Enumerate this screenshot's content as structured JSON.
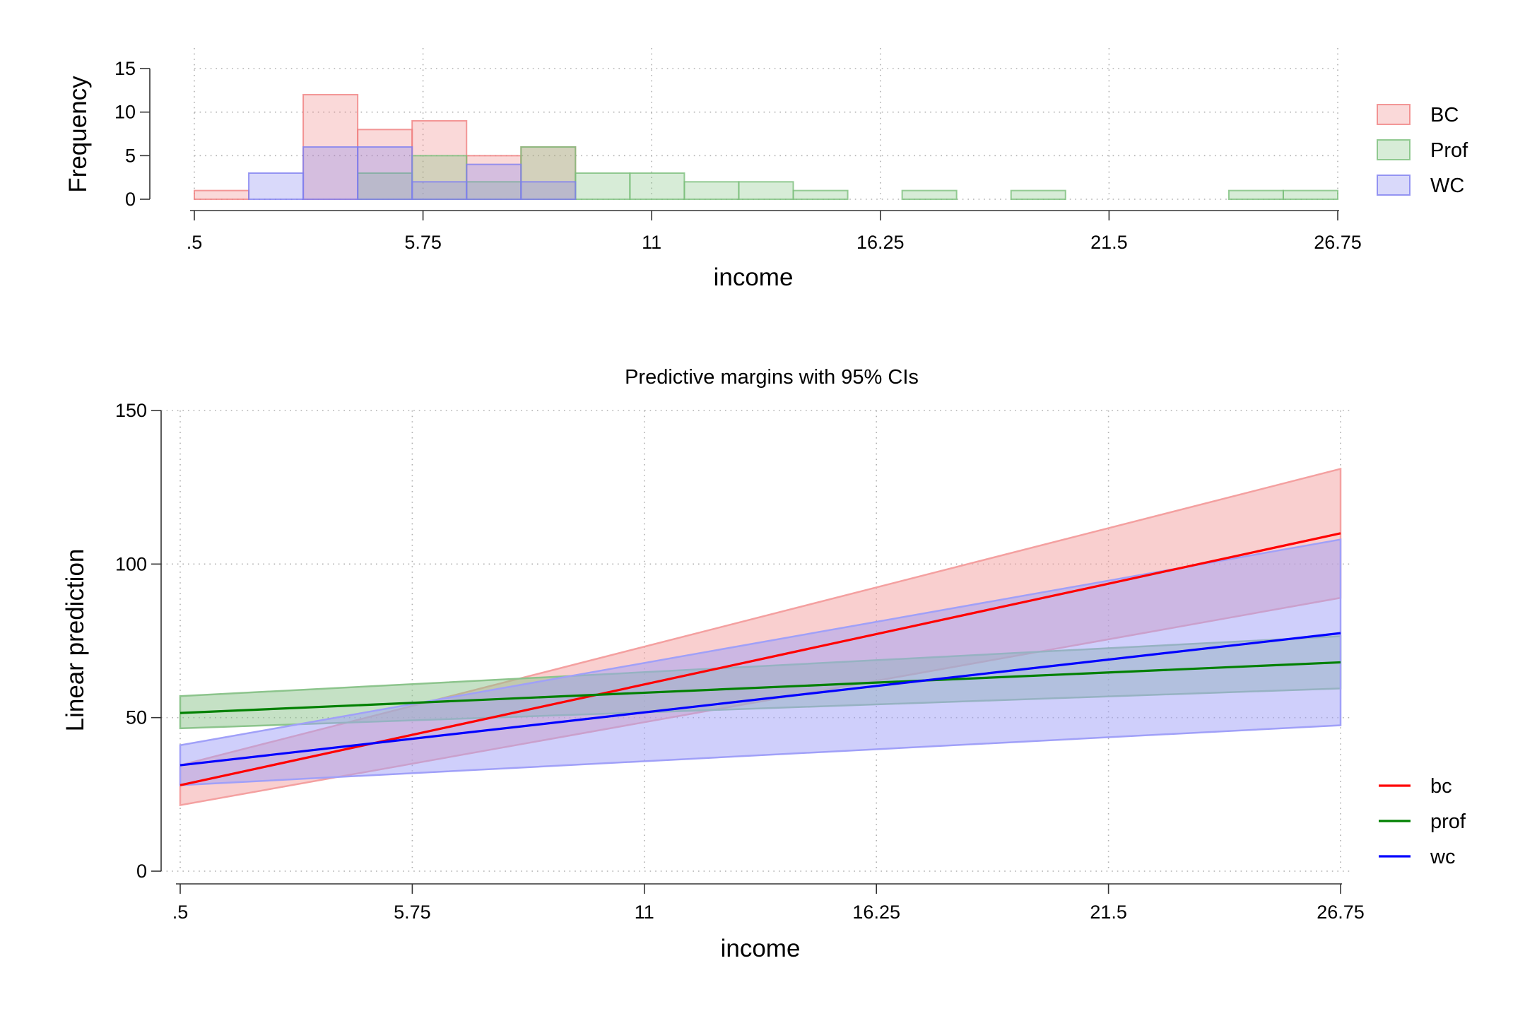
{
  "chart_data": [
    {
      "type": "histogram",
      "xlabel": "income",
      "ylabel": "Frequency",
      "xticks": [
        ".5",
        "5.75",
        "11",
        "16.25",
        "21.5",
        "26.75"
      ],
      "xlim": [
        0.5,
        26.75
      ],
      "yticks": [
        "0",
        "5",
        "10",
        "15"
      ],
      "ylim": [
        0,
        15
      ],
      "grid": true,
      "legend_position": "right",
      "bin_edges": [
        0.5,
        1.75,
        3.0,
        4.25,
        5.5,
        6.75,
        8.0,
        9.25,
        10.5,
        11.75,
        13.0,
        14.25,
        15.5,
        16.75,
        18.0,
        19.25,
        20.5,
        21.75,
        23.0,
        24.25,
        25.5,
        26.75
      ],
      "series": [
        {
          "name": "BC",
          "color": "#f08080",
          "values": [
            1,
            0,
            12,
            8,
            9,
            5,
            6,
            0,
            0,
            0,
            0,
            0,
            0,
            0,
            0,
            0,
            0,
            0,
            0,
            0,
            0
          ]
        },
        {
          "name": "Prof",
          "color": "#7cbf7c",
          "values": [
            0,
            0,
            0,
            3,
            5,
            2,
            6,
            3,
            3,
            2,
            2,
            1,
            0,
            1,
            0,
            1,
            0,
            0,
            0,
            1,
            1
          ]
        },
        {
          "name": "WC",
          "color": "#8080f0",
          "values": [
            0,
            3,
            6,
            6,
            2,
            4,
            2,
            0,
            0,
            0,
            0,
            0,
            0,
            0,
            0,
            0,
            0,
            0,
            0,
            0,
            0
          ]
        }
      ]
    },
    {
      "type": "line",
      "title": "Predictive margins with 95% CIs",
      "xlabel": "income",
      "ylabel": "Linear prediction",
      "xticks": [
        ".5",
        "5.75",
        "11",
        "16.25",
        "21.5",
        "26.75"
      ],
      "xlim": [
        0.5,
        26.75
      ],
      "yticks": [
        "0",
        "50",
        "100",
        "150"
      ],
      "ylim": [
        0,
        150
      ],
      "grid": true,
      "legend_position": "bottom-right",
      "x": [
        0.5,
        26.75
      ],
      "series": [
        {
          "name": "bc",
          "color": "#ff0000",
          "band_color": "#f4a0a0",
          "values": [
            28,
            110
          ],
          "lower": [
            21.5,
            89
          ],
          "upper": [
            34.5,
            131
          ]
        },
        {
          "name": "prof",
          "color": "#008000",
          "band_color": "#8cc48c",
          "values": [
            51.5,
            68
          ],
          "lower": [
            46.5,
            59.5
          ],
          "upper": [
            57,
            76.5
          ]
        },
        {
          "name": "wc",
          "color": "#0000ff",
          "band_color": "#a0a0f8",
          "values": [
            34.5,
            77.5
          ],
          "lower": [
            28,
            47.5
          ],
          "upper": [
            41,
            108
          ]
        }
      ]
    }
  ]
}
